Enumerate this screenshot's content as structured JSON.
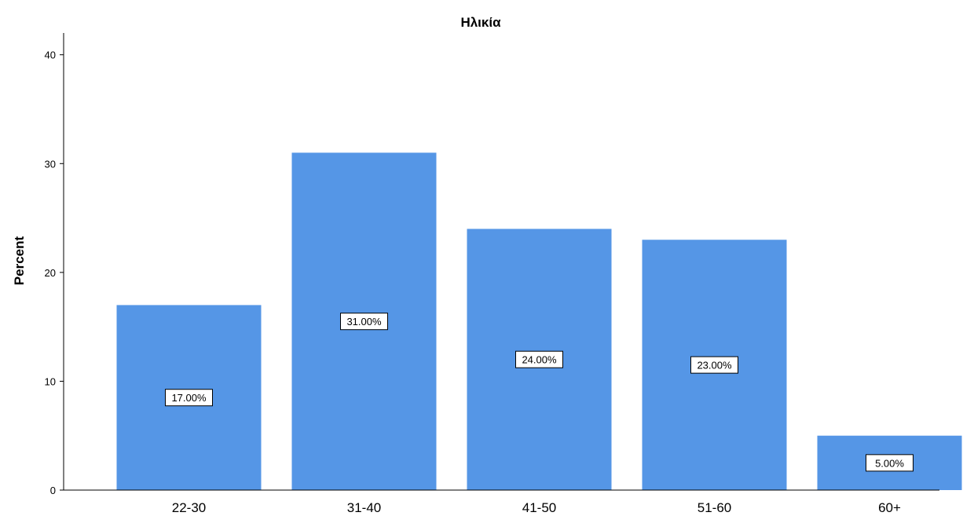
{
  "chart_data": {
    "type": "bar",
    "title": "Ηλικία",
    "xlabel": "",
    "ylabel": "Percent",
    "categories": [
      "22-30",
      "31-40",
      "41-50",
      "51-60",
      "60+"
    ],
    "values": [
      17,
      31,
      24,
      23,
      5
    ],
    "data_labels": [
      "17.00%",
      "31.00%",
      "24.00%",
      "23.00%",
      "5.00%"
    ],
    "ylim": [
      0,
      42
    ],
    "yticks": [
      0,
      10,
      20,
      30,
      40
    ],
    "grid": false,
    "bar_color": "#5596e6"
  }
}
